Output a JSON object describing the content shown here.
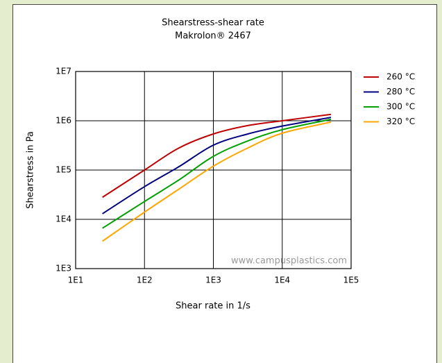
{
  "chart_data": {
    "type": "line",
    "title": "Shearstress-shear rate",
    "subtitle": "Makrolon® 2467",
    "x_label": "Shear rate in 1/s",
    "y_label": "Shearstress in Pa",
    "watermark": "www.campusplastics.com",
    "xlog": true,
    "ylog": true,
    "grid": true,
    "legend": "right",
    "xlim": [
      10,
      100000
    ],
    "ylim": [
      1000,
      10000000
    ],
    "xticks": [
      {
        "value": 10,
        "label": "1E1"
      },
      {
        "value": 100,
        "label": "1E2"
      },
      {
        "value": 1000,
        "label": "1E3"
      },
      {
        "value": 10000,
        "label": "1E4"
      },
      {
        "value": 100000,
        "label": "1E5"
      }
    ],
    "yticks": [
      {
        "value": 1000,
        "label": "1E3"
      },
      {
        "value": 10000,
        "label": "1E4"
      },
      {
        "value": 100000,
        "label": "1E5"
      },
      {
        "value": 1000000,
        "label": "1E6"
      },
      {
        "value": 10000000,
        "label": "1E7"
      }
    ],
    "x": [
      24.5,
      100,
      316,
      1000,
      3160,
      10000,
      51000
    ],
    "series": [
      {
        "name": "260 °C",
        "color": "#c00000",
        "values": [
          28000,
          100000,
          280000,
          540000,
          800000,
          1000000,
          1350000
        ]
      },
      {
        "name": "280 °C",
        "color": "#000080",
        "values": [
          13000,
          46000,
          117000,
          320000,
          540000,
          780000,
          1170000
        ]
      },
      {
        "name": "300 °C",
        "color": "#00a000",
        "values": [
          6600,
          23000,
          63000,
          190000,
          390000,
          660000,
          1070000
        ]
      },
      {
        "name": "320 °C",
        "color": "#ffa500",
        "values": [
          3600,
          14000,
          41000,
          120000,
          280000,
          560000,
          940000
        ]
      }
    ]
  }
}
